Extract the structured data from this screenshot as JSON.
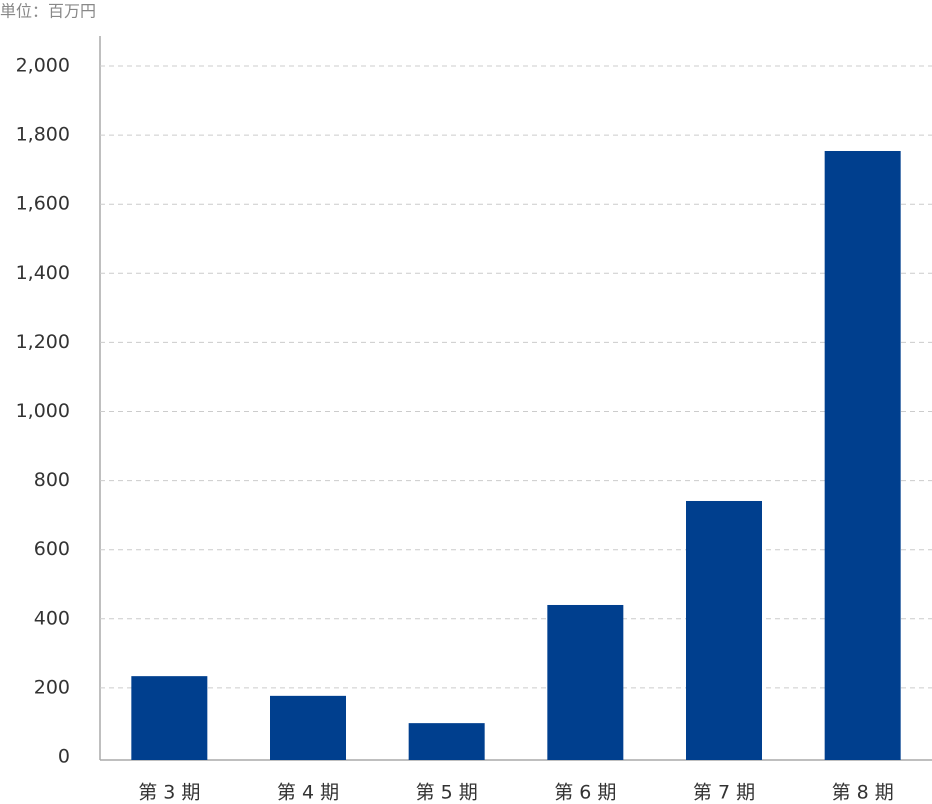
{
  "chart_data": {
    "type": "bar",
    "unit_label": "単位：百万円",
    "categories": [
      "第 3 期",
      "第 4 期",
      "第 5 期",
      "第 6 期",
      "第 7 期",
      "第 8 期"
    ],
    "values": [
      234,
      177,
      98,
      440,
      741,
      1754
    ],
    "color": "#003f8e",
    "ylim": [
      0,
      2000
    ],
    "yticks": [
      0,
      200,
      400,
      600,
      800,
      {
        "value": 1000,
        "label": "1,000"
      },
      {
        "value": 1200,
        "label": "1,200"
      },
      {
        "value": 1400,
        "label": "1,400"
      },
      {
        "value": 1600,
        "label": "1,600"
      },
      {
        "value": 1800,
        "label": "1,800"
      },
      {
        "value": 2000,
        "label": "2,000"
      }
    ],
    "grid": true
  }
}
